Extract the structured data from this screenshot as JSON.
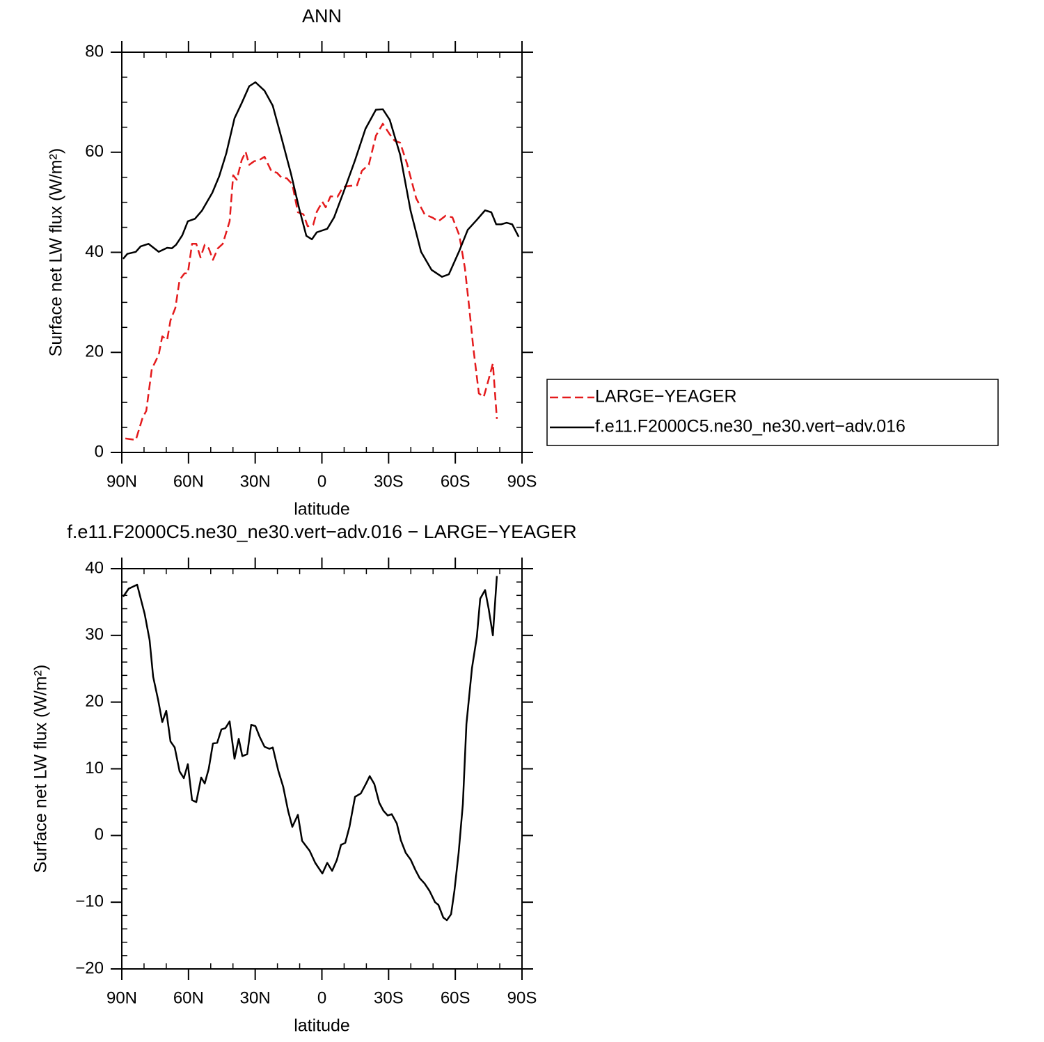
{
  "chart_data": [
    {
      "type": "line",
      "title": "ANN",
      "xlabel": "latitude",
      "ylabel": "Surface net LW flux (W/m²)",
      "xlim": [
        90,
        -90
      ],
      "xticks": [
        {
          "value": 90,
          "label": "90N"
        },
        {
          "value": 60,
          "label": "60N"
        },
        {
          "value": 30,
          "label": "30N"
        },
        0,
        {
          "value": -30,
          "label": "30S"
        },
        {
          "value": -60,
          "label": "60S"
        },
        {
          "value": -90,
          "label": "90S"
        }
      ],
      "xminorticks": [
        80,
        70,
        50,
        40,
        20,
        10,
        -10,
        -20,
        -40,
        -50,
        -70,
        -80
      ],
      "ylim": [
        0,
        80
      ],
      "yticks": [
        0,
        20,
        40,
        60,
        80
      ],
      "yminorticks": [
        5,
        10,
        15,
        25,
        30,
        35,
        45,
        50,
        55,
        65,
        70,
        75
      ],
      "legend": "outside-right",
      "series": [
        {
          "name": "LARGE−YEAGER",
          "color": "#e41a1c",
          "dashed": true,
          "x": [
            88.4,
            83.7,
            80.6,
            79,
            76.5,
            73.4,
            71.8,
            69.6,
            68.1,
            65.9,
            64,
            61.8,
            60.3,
            58.4,
            56.5,
            54.6,
            52.7,
            50.9,
            49,
            46.8,
            44.6,
            41.5,
            39.9,
            38.3,
            36.1,
            34.3,
            32.7,
            30.5,
            28.3,
            25.8,
            22.7,
            20.2,
            18.3,
            15.8,
            13.3,
            10.8,
            8.3,
            6.4,
            3.9,
            2.3,
            -0.2,
            -1.7,
            -3.9,
            -7,
            -9.6,
            -13.3,
            -15.8,
            -18,
            -21.1,
            -24.3,
            -27.4,
            -30.5,
            -32.7,
            -35.2,
            -38.3,
            -42.4,
            -46.2,
            -49.9,
            -52.4,
            -55.6,
            -58.7,
            -61.8,
            -64.3,
            -66.2,
            -68.1,
            -70.6,
            -72.8,
            -75,
            -76.9,
            -78.7
          ],
          "values": [
            2.8,
            2.5,
            7,
            8.3,
            16.7,
            19.5,
            23.2,
            22.5,
            26.4,
            28.9,
            34.5,
            35.8,
            35.8,
            41.7,
            41.7,
            39,
            41.5,
            40.8,
            38.5,
            40.8,
            41.7,
            46.2,
            55.4,
            54.5,
            58.4,
            60.1,
            57.5,
            58.2,
            58.4,
            59.1,
            56.2,
            55.9,
            55,
            54.8,
            53.6,
            48,
            47.6,
            45.2,
            45.5,
            48.1,
            50.1,
            49,
            51.2,
            51.1,
            53.1,
            53.3,
            53.4,
            56.3,
            57.5,
            63.3,
            65.7,
            63.6,
            62.3,
            61.9,
            57.7,
            50.8,
            47.6,
            46.9,
            46.2,
            47.3,
            47,
            43.4,
            36.9,
            29.2,
            20.9,
            11.8,
            11.1,
            14.6,
            17.8,
            6.7
          ]
        },
        {
          "name": "f.e11.F2000C5.ne30_ne30.vert−adv.016",
          "color": "#000000",
          "dashed": false,
          "x": [
            89.4,
            87.5,
            83.7,
            81.5,
            78,
            73.4,
            69.6,
            67.5,
            65.6,
            62.8,
            60.3,
            57.1,
            54,
            49.3,
            46.2,
            43,
            39.3,
            36.1,
            32.7,
            29.9,
            25.8,
            22.1,
            18,
            13.9,
            10.2,
            7,
            4.5,
            2.3,
            -2.4,
            -5.5,
            -10.2,
            -14.9,
            -19.6,
            -24.3,
            -27.4,
            -30.5,
            -35.2,
            -39.9,
            -44.6,
            -49.3,
            -54,
            -57.1,
            -61.8,
            -65.6,
            -69.7,
            -73.4,
            -76.2,
            -78.4,
            -80.6,
            -83.1,
            -85.6,
            -88.5
          ],
          "values": [
            38.7,
            39.7,
            40.1,
            41.2,
            41.7,
            40.1,
            40.9,
            40.8,
            41.5,
            43.4,
            46.2,
            46.7,
            48.3,
            51.9,
            55.2,
            59.8,
            66.8,
            69.8,
            73.2,
            74,
            72.3,
            69.3,
            62.6,
            55.7,
            48.7,
            43.3,
            42.6,
            44,
            44.7,
            47,
            52.6,
            58.4,
            64.7,
            68.5,
            68.6,
            66.5,
            59.5,
            48.3,
            40.1,
            36.5,
            35.1,
            35.6,
            40.3,
            44.5,
            46.5,
            48.4,
            48,
            45.6,
            45.6,
            45.9,
            45.6,
            43.1
          ]
        }
      ]
    },
    {
      "type": "line",
      "title": "f.e11.F2000C5.ne30_ne30.vert−adv.016 − LARGE−YEAGER",
      "xlabel": "latitude",
      "ylabel": "Surface net LW flux (W/m²)",
      "xlim": [
        90,
        -90
      ],
      "xticks": [
        {
          "value": 90,
          "label": "90N"
        },
        {
          "value": 60,
          "label": "60N"
        },
        {
          "value": 30,
          "label": "30N"
        },
        0,
        {
          "value": -30,
          "label": "30S"
        },
        {
          "value": -60,
          "label": "60S"
        },
        {
          "value": -90,
          "label": "90S"
        }
      ],
      "xminorticks": [
        80,
        70,
        50,
        40,
        20,
        10,
        -10,
        -20,
        -40,
        -50,
        -70,
        -80
      ],
      "ylim": [
        -20,
        40
      ],
      "yticks": [
        {
          "value": -20,
          "label": "−20"
        },
        {
          "value": -10,
          "label": "−10"
        },
        0,
        10,
        20,
        30,
        40
      ],
      "yminorticks": [
        -18,
        -16,
        -14,
        -12,
        -8,
        -6,
        -4,
        -2,
        2,
        4,
        6,
        8,
        12,
        14,
        16,
        18,
        22,
        24,
        26,
        28,
        32,
        34,
        36,
        38
      ],
      "color": "#000000",
      "x": [
        89.4,
        86.9,
        83.1,
        79.7,
        77.5,
        75.9,
        73.7,
        71.8,
        70,
        68.1,
        66.2,
        64,
        62.1,
        60.3,
        58.4,
        56.5,
        54.3,
        52.7,
        50.9,
        49,
        47.1,
        45.2,
        43.4,
        41.5,
        39.3,
        37.4,
        35.8,
        33.6,
        31.8,
        29.9,
        28,
        25.8,
        23.6,
        22.1,
        19.6,
        17.4,
        15.2,
        13.3,
        10.8,
        8.9,
        5.5,
        3,
        -0.2,
        -2.4,
        -4.6,
        -6.7,
        -8.6,
        -10.5,
        -12.4,
        -14.9,
        -17.5,
        -19.9,
        -21.5,
        -23.6,
        -25.8,
        -27.7,
        -29.6,
        -31.4,
        -33.7,
        -35.5,
        -37.7,
        -39.9,
        -42.1,
        -44,
        -46.2,
        -48.4,
        -50.9,
        -52.4,
        -54.6,
        -56.2,
        -58.1,
        -59.6,
        -61.5,
        -63.4,
        -65,
        -67.5,
        -69.7,
        -71.2,
        -73.4,
        -75,
        -76.9,
        -78.7
      ],
      "values": [
        35.8,
        37,
        37.6,
        33.2,
        29.3,
        23.8,
        20.4,
        17,
        18.7,
        14.1,
        13.2,
        9.6,
        8.6,
        10.7,
        5.3,
        5,
        8.7,
        7.8,
        10,
        13.8,
        13.9,
        15.9,
        16.1,
        17.1,
        11.5,
        14.5,
        11.9,
        12.2,
        16.6,
        16.4,
        14.8,
        13.3,
        13,
        13.2,
        9.7,
        7.3,
        3.7,
        1.3,
        3.1,
        -0.8,
        -2.3,
        -4.1,
        -5.7,
        -4.1,
        -5.3,
        -3.7,
        -1.4,
        -1.1,
        1.3,
        5.8,
        6.3,
        7.8,
        8.9,
        7.7,
        4.9,
        3.7,
        3,
        3.2,
        1.8,
        -0.7,
        -2.6,
        -3.6,
        -5.2,
        -6.4,
        -7.2,
        -8.3,
        -10,
        -10.4,
        -12.3,
        -12.7,
        -11.8,
        -8.3,
        -2.6,
        4.7,
        16.7,
        25.1,
        29.8,
        35.5,
        36.8,
        34,
        30,
        38.9
      ]
    }
  ]
}
